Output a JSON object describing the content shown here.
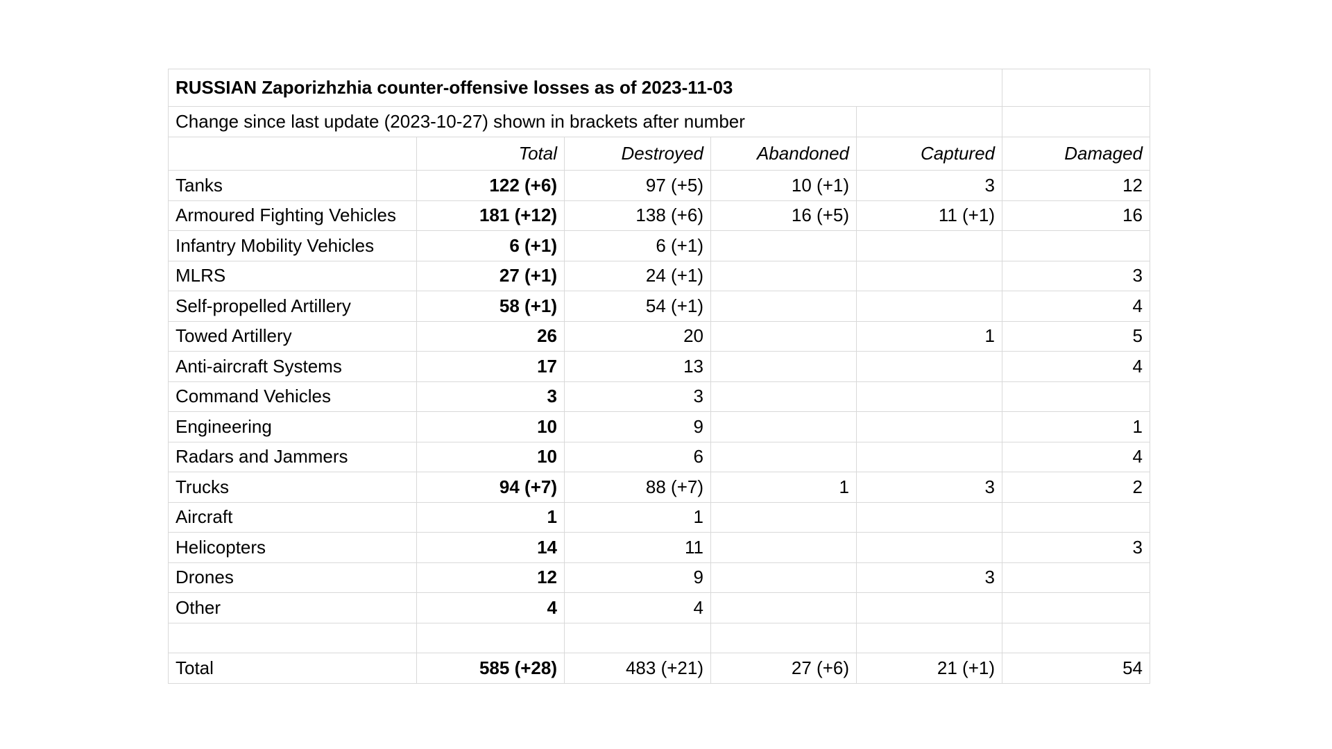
{
  "table": {
    "title": "RUSSIAN Zaporizhzhia counter-offensive losses as of 2023-11-03",
    "subtitle": "Change since last update (2023-10-27) shown in brackets after number"
  },
  "chart_data": {
    "type": "table",
    "title": "RUSSIAN Zaporizhzhia counter-offensive losses as of 2023-11-03",
    "subtitle": "Change since last update (2023-10-27) shown in brackets after number",
    "columns": [
      "Total",
      "Destroyed",
      "Abandoned",
      "Captured",
      "Damaged"
    ],
    "rows": [
      [
        "Tanks",
        "122 (+6)",
        "97 (+5)",
        "10 (+1)",
        "3",
        "12"
      ],
      [
        "Armoured Fighting Vehicles",
        "181 (+12)",
        "138 (+6)",
        "16 (+5)",
        "11 (+1)",
        "16"
      ],
      [
        "Infantry Mobility Vehicles",
        "6 (+1)",
        "6 (+1)",
        "",
        "",
        ""
      ],
      [
        "MLRS",
        "27 (+1)",
        "24 (+1)",
        "",
        "",
        "3"
      ],
      [
        "Self-propelled Artillery",
        "58 (+1)",
        "54 (+1)",
        "",
        "",
        "4"
      ],
      [
        "Towed Artillery",
        "26",
        "20",
        "",
        "1",
        "5"
      ],
      [
        "Anti-aircraft Systems",
        "17",
        "13",
        "",
        "",
        "4"
      ],
      [
        "Command Vehicles",
        "3",
        "3",
        "",
        "",
        ""
      ],
      [
        "Engineering",
        "10",
        "9",
        "",
        "",
        "1"
      ],
      [
        "Radars and Jammers",
        "10",
        "6",
        "",
        "",
        "4"
      ],
      [
        "Trucks",
        "94 (+7)",
        "88 (+7)",
        "1",
        "3",
        "2"
      ],
      [
        "Aircraft",
        "1",
        "1",
        "",
        "",
        ""
      ],
      [
        "Helicopters",
        "14",
        "11",
        "",
        "",
        "3"
      ],
      [
        "Drones",
        "12",
        "9",
        "",
        "3",
        ""
      ],
      [
        "Other",
        "4",
        "4",
        "",
        "",
        ""
      ],
      [
        "",
        "",
        "",
        "",
        "",
        ""
      ],
      [
        "Total",
        "585 (+28)",
        "483 (+21)",
        "27 (+6)",
        "21 (+1)",
        "54"
      ]
    ]
  }
}
